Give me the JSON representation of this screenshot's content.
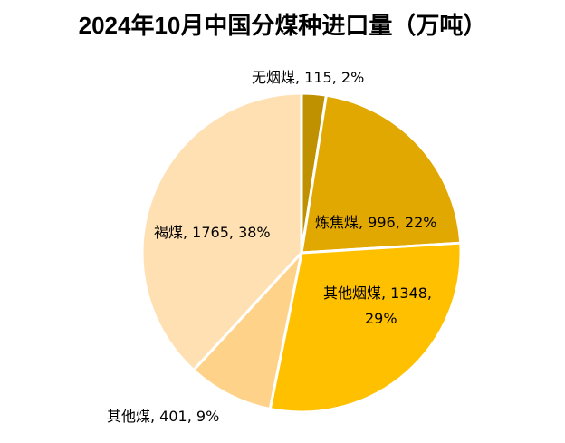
{
  "chart_data": {
    "type": "pie",
    "title": "2024年10月中国分煤种进口量（万吨）",
    "slices": [
      {
        "name": "无烟煤",
        "value": 115,
        "pct": "2%",
        "color": "#BF9000",
        "label": "无烟煤, 115, 2%"
      },
      {
        "name": "炼焦煤",
        "value": 996,
        "pct": "22%",
        "color": "#E0A800",
        "label": "炼焦煤, 996, 22%"
      },
      {
        "name": "其他烟煤",
        "value": 1348,
        "pct": "29%",
        "color": "#FFC000",
        "label_line1": "其他烟煤, 1348,",
        "label_line2": "29%"
      },
      {
        "name": "其他煤",
        "value": 401,
        "pct": "9%",
        "color": "#FFD28A",
        "label": "其他煤, 401, 9%"
      },
      {
        "name": "褐煤",
        "value": 1765,
        "pct": "38%",
        "color": "#FFE0B2",
        "label": "褐煤, 1765, 38%"
      }
    ]
  }
}
